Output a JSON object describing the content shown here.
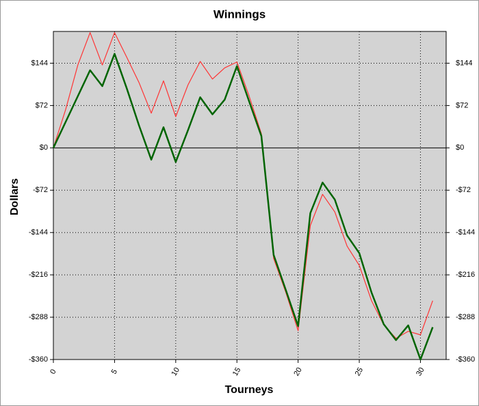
{
  "chart_data": {
    "type": "line",
    "title": "Winnings",
    "x_label": "Tourneys",
    "y_label": "Dollars",
    "x": [
      0,
      1,
      2,
      3,
      4,
      5,
      6,
      7,
      8,
      9,
      10,
      11,
      12,
      13,
      14,
      15,
      16,
      17,
      18,
      19,
      20,
      21,
      22,
      23,
      24,
      25,
      26,
      27,
      28,
      29,
      30,
      31
    ],
    "series": [
      {
        "color": "#ff3333",
        "width": 1.2,
        "values": [
          0,
          65,
          141,
          196,
          141,
          196,
          154,
          111,
          59,
          114,
          53,
          107,
          147,
          117,
          136,
          146,
          88,
          24,
          -188,
          -246,
          -311,
          -132,
          -79,
          -109,
          -167,
          -200,
          -260,
          -301,
          -324,
          -312,
          -318,
          -260
        ]
      },
      {
        "color": "#006400",
        "width": 2.5,
        "values": [
          0,
          44,
          88,
          132,
          105,
          160,
          101,
          38,
          -20,
          35,
          -24,
          30,
          86,
          57,
          82,
          139,
          79,
          20,
          -182,
          -242,
          -303,
          -111,
          -59,
          -88,
          -149,
          -179,
          -246,
          -300,
          -327,
          -302,
          -360,
          -305
        ]
      }
    ],
    "xlim": [
      0,
      32.1
    ],
    "xticks": [
      0,
      5,
      10,
      15,
      20,
      25,
      30
    ],
    "ylim": [
      -360,
      198
    ],
    "yticks": [
      {
        "value": -360,
        "label": "-$360"
      },
      {
        "value": -288,
        "label": "-$288"
      },
      {
        "value": -216,
        "label": "-$216"
      },
      {
        "value": -144,
        "label": "-$144"
      },
      {
        "value": -72,
        "label": "-$72"
      },
      {
        "value": 0,
        "label": "$0"
      },
      {
        "value": 72,
        "label": "$72"
      },
      {
        "value": 144,
        "label": "$144"
      }
    ],
    "grid": true
  }
}
